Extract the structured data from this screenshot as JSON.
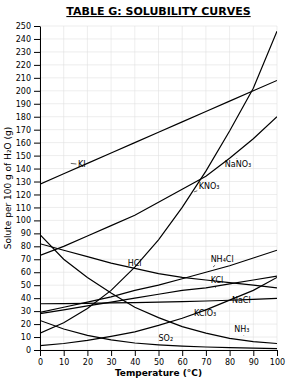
{
  "chart_data": {
    "type": "line",
    "title": "TABLE G: SOLUBILITY CURVES",
    "x_label": "Temperature (°C)",
    "y_label": "Solute per 100 g of H₂O (g)",
    "xlim": [
      0,
      100
    ],
    "ylim": [
      0,
      250
    ],
    "xticks": [
      0,
      10,
      20,
      30,
      40,
      50,
      60,
      70,
      80,
      90,
      100
    ],
    "yticks": [
      0,
      10,
      20,
      30,
      40,
      50,
      60,
      70,
      80,
      90,
      100,
      110,
      120,
      130,
      140,
      150,
      160,
      170,
      180,
      190,
      200,
      210,
      220,
      230,
      240,
      250
    ],
    "grid": true,
    "color": "#000000",
    "x": [
      0,
      10,
      20,
      30,
      40,
      50,
      60,
      70,
      80,
      90,
      100
    ],
    "series": [
      {
        "values": [
          128,
          136,
          144,
          152,
          160,
          168,
          176,
          184,
          192,
          200,
          208
        ]
      },
      {
        "values": [
          73,
          80,
          88,
          96,
          104,
          114,
          124,
          134,
          148,
          163,
          180
        ]
      },
      {
        "values": [
          13,
          21,
          32,
          46,
          64,
          85,
          110,
          138,
          169,
          202,
          246
        ]
      },
      {
        "values": [
          29,
          33,
          37,
          41,
          46,
          50,
          55,
          60,
          65,
          71,
          77
        ]
      },
      {
        "values": [
          82,
          77,
          72,
          67,
          63,
          59,
          56,
          54,
          52,
          50,
          48
        ]
      },
      {
        "values": [
          28,
          31,
          34,
          37,
          40,
          43,
          46,
          48,
          51,
          54,
          57
        ]
      },
      {
        "values": [
          35.7,
          35.8,
          36.0,
          36.3,
          36.6,
          37.0,
          37.3,
          37.8,
          38.4,
          39.0,
          39.8
        ]
      },
      {
        "values": [
          3.3,
          5.0,
          7.4,
          10.5,
          14.0,
          19.0,
          24.5,
          31.0,
          38.5,
          46.0,
          56.0
        ]
      },
      {
        "values": [
          22.8,
          16.2,
          11.3,
          7.8,
          5.4,
          4.0,
          3.0,
          2.3,
          1.8,
          1.4,
          1.1
        ]
      },
      {
        "values": [
          89,
          70,
          56,
          44,
          33,
          25,
          18,
          13,
          9,
          6.5,
          5.0
        ]
      }
    ],
    "annotations": [
      {
        "text": "KI",
        "xy": [
          13,
          144
        ],
        "xytext": [
          16,
          143
        ]
      },
      {
        "text": "NaNO₃",
        "xy": [
          83,
          148
        ],
        "xytext": [
          78,
          143
        ]
      },
      {
        "text": "KNO₃",
        "xy": [
          65,
          122
        ],
        "xytext": [
          67,
          126
        ]
      },
      {
        "text": "NH₄Cl",
        "xy": [
          73,
          64
        ],
        "xytext": [
          72,
          70
        ]
      },
      {
        "text": "HCl",
        "xy": [
          41,
          63
        ],
        "xytext": [
          37,
          67
        ]
      },
      {
        "text": "KCl",
        "xy": [
          74,
          48
        ],
        "xytext": [
          72,
          54
        ]
      },
      {
        "text": "NaCl",
        "xy": [
          83,
          38
        ],
        "xytext": [
          81,
          38
        ]
      },
      {
        "text": "KClO₃",
        "xy": [
          68,
          30
        ],
        "xytext": [
          65,
          28
        ]
      },
      {
        "text": "SO₂",
        "xy": [
          52,
          5
        ],
        "xytext": [
          50,
          9
        ]
      },
      {
        "text": "NH₃",
        "xy": [
          86,
          11
        ],
        "xytext": [
          82,
          16
        ]
      }
    ]
  }
}
